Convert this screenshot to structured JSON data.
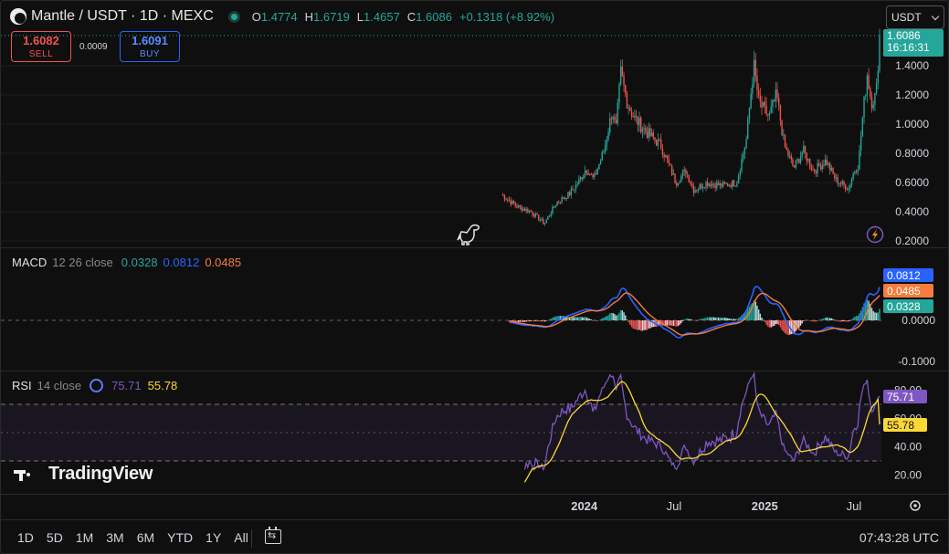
{
  "header": {
    "title": "Mantle / USDT · 1D · MEXC",
    "ohlc": [
      {
        "k": "O",
        "v": "1.4774"
      },
      {
        "k": "H",
        "v": "1.6719"
      },
      {
        "k": "L",
        "v": "1.4657"
      },
      {
        "k": "C",
        "v": "1.6086"
      },
      {
        "k": "",
        "v": "+0.1318 (+8.92%)"
      }
    ]
  },
  "trade": {
    "sell_price": "1.6082",
    "sell_label": "SELL",
    "spread": "0.0009",
    "buy_price": "1.6091",
    "buy_label": "BUY"
  },
  "currency": "USDT",
  "last_price": {
    "value": "1.6086",
    "countdown": "16:16:31"
  },
  "colors": {
    "up": "#26a69a",
    "down": "#ef5350",
    "macd": "#2962ff",
    "signal": "#f57c3d",
    "rsi": "#7e57c2",
    "rsi_ma": "#fdd835"
  },
  "macd": {
    "name": "MACD",
    "params": "12 26 close",
    "hist": "0.0328",
    "macd": "0.0812",
    "signal": "0.0485"
  },
  "rsi": {
    "name": "RSI",
    "params": "14 close",
    "rsi": "75.71",
    "ma": "55.78"
  },
  "brand": "TradingView",
  "bottom": {
    "ranges": [
      "1D",
      "5D",
      "1M",
      "3M",
      "6M",
      "YTD",
      "1Y",
      "All"
    ],
    "clock": "07:43:28 UTC"
  },
  "chart_data": {
    "type": "candlestick",
    "symbol": "Mantle / USDT",
    "interval": "1D",
    "price_axis": {
      "ticks": [
        "1.4000",
        "1.2000",
        "1.0000",
        "0.8000",
        "0.6000",
        "0.4000",
        "0.2000"
      ],
      "range": [
        0.2,
        1.6
      ]
    },
    "time_axis": {
      "ticks": [
        "2024",
        "Jul",
        "2025",
        "Jul"
      ]
    },
    "price_series": [
      {
        "t": "2023-07-17",
        "v": 0.52
      },
      {
        "t": "2023-08-15",
        "v": 0.44
      },
      {
        "t": "2023-09-15",
        "v": 0.4
      },
      {
        "t": "2023-10-12",
        "v": 0.32
      },
      {
        "t": "2023-11-05",
        "v": 0.46
      },
      {
        "t": "2023-12-01",
        "v": 0.52
      },
      {
        "t": "2023-12-20",
        "v": 0.6
      },
      {
        "t": "2024-01-05",
        "v": 0.7
      },
      {
        "t": "2024-01-20",
        "v": 0.62
      },
      {
        "t": "2024-02-10",
        "v": 0.82
      },
      {
        "t": "2024-02-27",
        "v": 1.1
      },
      {
        "t": "2024-03-05",
        "v": 0.95
      },
      {
        "t": "2024-03-15",
        "v": 1.35
      },
      {
        "t": "2024-03-28",
        "v": 1.15
      },
      {
        "t": "2024-04-10",
        "v": 1.05
      },
      {
        "t": "2024-05-05",
        "v": 0.95
      },
      {
        "t": "2024-06-05",
        "v": 0.85
      },
      {
        "t": "2024-07-05",
        "v": 0.6
      },
      {
        "t": "2024-07-25",
        "v": 0.68
      },
      {
        "t": "2024-08-10",
        "v": 0.55
      },
      {
        "t": "2024-09-05",
        "v": 0.6
      },
      {
        "t": "2024-10-05",
        "v": 0.58
      },
      {
        "t": "2024-11-05",
        "v": 0.6
      },
      {
        "t": "2024-11-25",
        "v": 0.9
      },
      {
        "t": "2024-12-05",
        "v": 1.25
      },
      {
        "t": "2024-12-10",
        "v": 1.4
      },
      {
        "t": "2024-12-20",
        "v": 1.15
      },
      {
        "t": "2025-01-10",
        "v": 1.05
      },
      {
        "t": "2025-01-25",
        "v": 1.2
      },
      {
        "t": "2025-02-10",
        "v": 0.85
      },
      {
        "t": "2025-03-01",
        "v": 0.7
      },
      {
        "t": "2025-03-20",
        "v": 0.82
      },
      {
        "t": "2025-04-10",
        "v": 0.68
      },
      {
        "t": "2025-05-05",
        "v": 0.75
      },
      {
        "t": "2025-05-25",
        "v": 0.62
      },
      {
        "t": "2025-06-20",
        "v": 0.56
      },
      {
        "t": "2025-07-01",
        "v": 0.68
      },
      {
        "t": "2025-07-10",
        "v": 0.72
      },
      {
        "t": "2025-07-20",
        "v": 1.1
      },
      {
        "t": "2025-07-28",
        "v": 1.35
      },
      {
        "t": "2025-08-05",
        "v": 1.15
      },
      {
        "t": "2025-08-15",
        "v": 1.2
      },
      {
        "t": "2025-08-22",
        "v": 1.61
      }
    ],
    "macd_axis": {
      "ticks": [
        "0.0000",
        "-0.1000"
      ]
    },
    "macd_values": {
      "macd": 0.0812,
      "signal": 0.0485,
      "histogram": 0.0328
    },
    "rsi_axis": {
      "ticks": [
        "80.00",
        "60.00",
        "40.00",
        "20.00"
      ],
      "bands": [
        30,
        70
      ]
    },
    "rsi_values": {
      "rsi": 75.71,
      "ma": 55.78
    }
  }
}
